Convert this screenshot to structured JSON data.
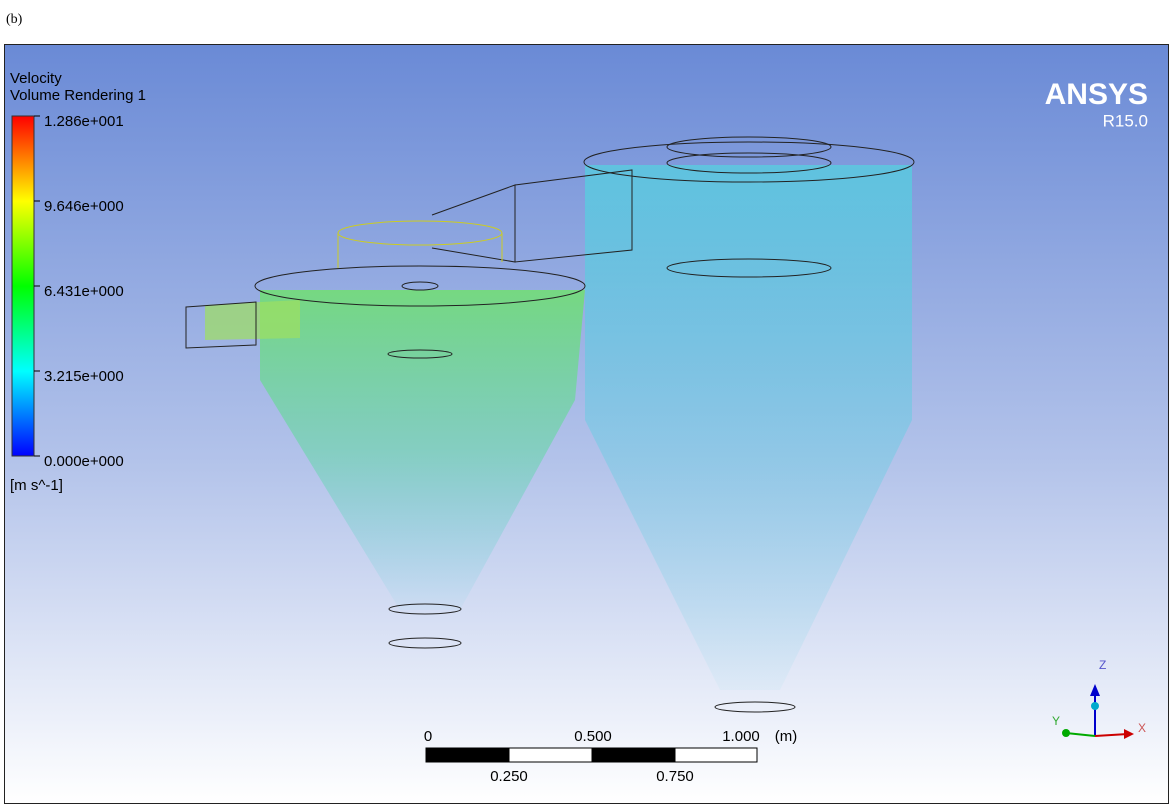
{
  "panel_label": "(b)",
  "legend": {
    "title": "Velocity",
    "subtitle": "Volume Rendering 1",
    "ticks": [
      "1.286e+001",
      "9.646e+000",
      "6.431e+000",
      "3.215e+000",
      "0.000e+000"
    ],
    "unit": "[m s^-1]"
  },
  "logo": {
    "name": "ANSYS",
    "version": "R15.0"
  },
  "scale_bar": {
    "top_labels": [
      "0",
      "0.500",
      "1.000"
    ],
    "unit": "(m)",
    "bottom_labels": [
      "0.250",
      "0.750"
    ]
  },
  "triad": {
    "z": "Z",
    "y": "Y",
    "x": "X"
  }
}
